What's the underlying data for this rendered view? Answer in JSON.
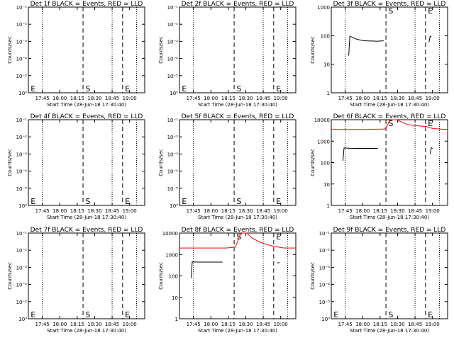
{
  "chart_data": [
    {
      "type": "line",
      "title": "Det 1f BLACK = Events, RED = LLD",
      "xlabel": "Start Time (28-Jun-18 17:30:40)",
      "ylabel": "Counts/sec",
      "yscale": "log-blank",
      "yticks": [
        "10⁻¹",
        "10⁻²",
        "10⁻³",
        "10⁻⁴",
        "10⁻⁵",
        "10⁰"
      ],
      "xticks": [
        "17:45",
        "18:00",
        "18:15",
        "18:30",
        "18:45",
        "19:00"
      ],
      "markers": [
        {
          "label": "E",
          "x": "17:31"
        },
        {
          "label": "S",
          "x": "18:17"
        },
        {
          "label": "E",
          "x": "18:41"
        }
      ],
      "series": []
    },
    {
      "type": "line",
      "title": "Det 2f BLACK = Events, RED = LLD",
      "xlabel": "Start Time (28-Jun-18 17:30:40)",
      "ylabel": "Counts/sec",
      "yscale": "log-blank",
      "yticks": [
        "10⁻¹",
        "10⁻²",
        "10⁻³",
        "10⁻⁴",
        "10⁻⁵",
        "10⁰"
      ],
      "xticks": [
        "17:45",
        "18:00",
        "18:15",
        "18:30",
        "18:45",
        "19:00"
      ],
      "markers": [
        {
          "label": "E",
          "x": "17:31"
        },
        {
          "label": "S",
          "x": "18:17"
        },
        {
          "label": "E",
          "x": "18:41"
        }
      ],
      "series": []
    },
    {
      "type": "line",
      "title": "Det 3f BLACK = Events, RED = LLD",
      "xlabel": "Start Time (28-Jun-18 17:30:40)",
      "ylabel": "Counts/sec",
      "yscale": "log",
      "yticks": [
        "1000",
        "100",
        "10",
        "1"
      ],
      "xticks": [
        "17:45",
        "18:00",
        "18:15",
        "18:30",
        "18:45",
        "19:00"
      ],
      "markers": [
        {
          "label": "S",
          "x": "18:17"
        },
        {
          "label": "E",
          "x": "18:41"
        }
      ],
      "series": [
        {
          "color": "#000000",
          "points": [
            [
              0.15,
              20
            ],
            [
              0.16,
              95
            ],
            [
              0.19,
              85
            ],
            [
              0.22,
              75
            ],
            [
              0.25,
              70
            ],
            [
              0.27,
              68
            ],
            [
              0.3,
              66
            ],
            [
              0.33,
              65
            ],
            [
              0.36,
              65
            ],
            [
              0.39,
              64
            ],
            [
              0.42,
              65
            ],
            [
              0.45,
              66
            ]
          ]
        },
        {
          "color": "#000000",
          "points": [
            [
              0.84,
              60
            ],
            [
              0.85,
              95
            ],
            [
              0.86,
              90
            ]
          ]
        }
      ]
    },
    {
      "type": "line",
      "title": "Det 4f BLACK = Events, RED = LLD",
      "xlabel": "Start Time (28-Jun-18 17:30:40)",
      "ylabel": "Counts/sec",
      "yscale": "log-blank",
      "yticks": [
        "10⁻¹",
        "10⁻²",
        "10⁻³",
        "10⁻⁴",
        "10⁻⁵",
        "10⁰"
      ],
      "xticks": [
        "17:45",
        "18:00",
        "18:15",
        "18:30",
        "18:45",
        "19:00"
      ],
      "markers": [
        {
          "label": "E",
          "x": "17:31"
        },
        {
          "label": "S",
          "x": "18:17"
        },
        {
          "label": "E",
          "x": "18:41"
        }
      ],
      "series": []
    },
    {
      "type": "line",
      "title": "Det 5f BLACK = Events, RED = LLD",
      "xlabel": "Start Time (28-Jun-18 17:30:40)",
      "ylabel": "Counts/sec",
      "yscale": "log-blank",
      "yticks": [
        "10⁻¹",
        "10⁻²",
        "10⁻³",
        "10⁻⁴",
        "10⁻⁵",
        "10⁰"
      ],
      "xticks": [
        "17:45",
        "18:00",
        "18:15",
        "18:30",
        "18:45",
        "19:00"
      ],
      "markers": [
        {
          "label": "E",
          "x": "17:31"
        },
        {
          "label": "S",
          "x": "18:17"
        },
        {
          "label": "E",
          "x": "18:41"
        }
      ],
      "series": []
    },
    {
      "type": "line",
      "title": "Det 6f BLACK = Events, RED = LLD",
      "xlabel": "Start Time (28-Jun-18 17:30:40)",
      "ylabel": "Counts/sec",
      "yscale": "log",
      "yticks": [
        "10000",
        "1000",
        "100",
        "10",
        "1"
      ],
      "xticks": [
        "17:45",
        "18:00",
        "18:15",
        "18:30",
        "18:45",
        "19:00"
      ],
      "markers": [
        {
          "label": "S",
          "x": "18:17"
        },
        {
          "label": "E",
          "x": "18:41"
        }
      ],
      "series": [
        {
          "color": "#ff0000",
          "points": [
            [
              0,
              3500
            ],
            [
              0.1,
              3500
            ],
            [
              0.2,
              3500
            ],
            [
              0.3,
              3500
            ],
            [
              0.4,
              3600
            ],
            [
              0.46,
              3700
            ],
            [
              0.48,
              5000
            ],
            [
              0.5,
              9000
            ],
            [
              0.52,
              14000
            ],
            [
              0.56,
              12000
            ],
            [
              0.6,
              8000
            ],
            [
              0.65,
              6000
            ],
            [
              0.7,
              5500
            ],
            [
              0.78,
              5000
            ],
            [
              0.82,
              4800
            ],
            [
              0.86,
              4000
            ],
            [
              0.9,
              3800
            ],
            [
              0.95,
              3600
            ],
            [
              1,
              3500
            ]
          ]
        },
        {
          "color": "#000000",
          "points": [
            [
              0.1,
              120
            ],
            [
              0.11,
              480
            ],
            [
              0.15,
              470
            ],
            [
              0.2,
              460
            ],
            [
              0.3,
              460
            ],
            [
              0.35,
              460
            ],
            [
              0.4,
              460
            ]
          ]
        },
        {
          "color": "#000000",
          "points": [
            [
              0.85,
              250
            ],
            [
              0.86,
              500
            ],
            [
              0.87,
              450
            ]
          ]
        }
      ]
    },
    {
      "type": "line",
      "title": "Det 7f BLACK = Events, RED = LLD",
      "xlabel": "Start Time (28-Jun-18 17:30:40)",
      "ylabel": "Counts/sec",
      "yscale": "log-blank",
      "yticks": [
        "10⁻¹",
        "10⁻²",
        "10⁻³",
        "10⁻⁴",
        "10⁻⁵",
        "10⁰"
      ],
      "xticks": [
        "17:45",
        "18:00",
        "18:15",
        "18:30",
        "18:45",
        "19:00"
      ],
      "markers": [
        {
          "label": "E",
          "x": "17:31"
        },
        {
          "label": "S",
          "x": "18:17"
        },
        {
          "label": "E",
          "x": "18:41"
        }
      ],
      "series": []
    },
    {
      "type": "line",
      "title": "Det 8f BLACK = Events, RED = LLD",
      "xlabel": "Start Time (28-Jun-18 17:30:40)",
      "ylabel": "Counts/sec",
      "yscale": "log",
      "yticks": [
        "10000",
        "1000",
        "100",
        "10",
        "1"
      ],
      "xticks": [
        "17:45",
        "18:00",
        "18:15",
        "18:30",
        "18:45",
        "19:00"
      ],
      "markers": [
        {
          "label": "S",
          "x": "18:17"
        },
        {
          "label": "E",
          "x": "18:41"
        }
      ],
      "series": [
        {
          "color": "#ff0000",
          "points": [
            [
              0,
              2000
            ],
            [
              0.1,
              2000
            ],
            [
              0.2,
              2000
            ],
            [
              0.3,
              2000
            ],
            [
              0.4,
              2000
            ],
            [
              0.48,
              2200
            ],
            [
              0.5,
              4000
            ],
            [
              0.52,
              8000
            ],
            [
              0.54,
              12000
            ],
            [
              0.58,
              10000
            ],
            [
              0.62,
              6000
            ],
            [
              0.68,
              4000
            ],
            [
              0.74,
              3000
            ],
            [
              0.8,
              2500
            ],
            [
              0.85,
              2200
            ],
            [
              0.9,
              2000
            ],
            [
              1,
              2000
            ]
          ]
        },
        {
          "color": "#000000",
          "points": [
            [
              0.1,
              80
            ],
            [
              0.11,
              450
            ],
            [
              0.15,
              440
            ],
            [
              0.2,
              440
            ],
            [
              0.3,
              440
            ],
            [
              0.37,
              440
            ]
          ]
        },
        {
          "color": "#000000",
          "points": [
            [
              0.84,
              400
            ],
            [
              0.86,
              420
            ]
          ]
        }
      ]
    },
    {
      "type": "line",
      "title": "Det 9f BLACK = Events, RED = LLD",
      "xlabel": "Start Time (28-Jun-18 17:30:40)",
      "ylabel": "Counts/sec",
      "yscale": "log-blank",
      "yticks": [
        "10⁻¹",
        "10⁻²",
        "10⁻³",
        "10⁻⁴",
        "10⁻⁵",
        "10⁰"
      ],
      "xticks": [
        "17:45",
        "18:00",
        "18:15",
        "18:30",
        "18:45",
        "19:00"
      ],
      "markers": [
        {
          "label": "E",
          "x": "17:31"
        },
        {
          "label": "S",
          "x": "18:17"
        },
        {
          "label": "E",
          "x": "18:41"
        }
      ],
      "series": []
    }
  ]
}
